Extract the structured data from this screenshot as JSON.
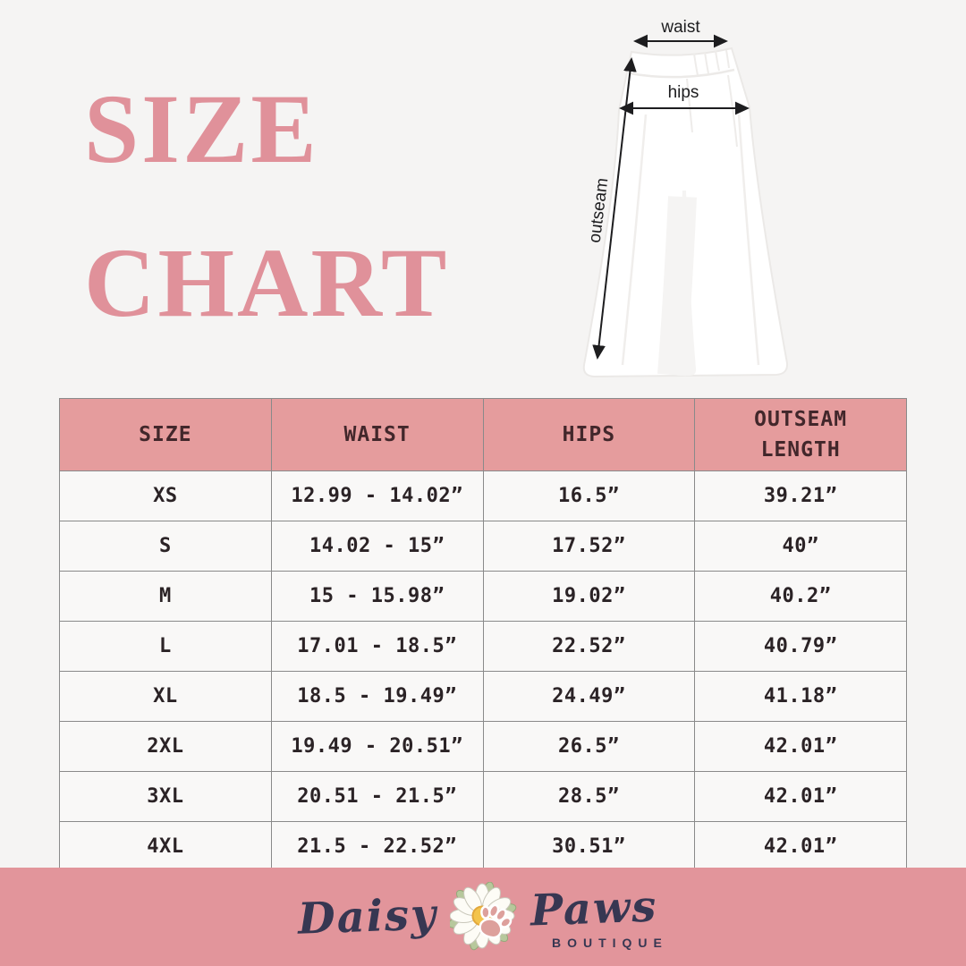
{
  "page": {
    "background_color": "#f5f4f3"
  },
  "title": {
    "line1": "SIZE",
    "line2": "CHART",
    "color": "#e0919a"
  },
  "diagram": {
    "waist_label": "waist",
    "hips_label": "hips",
    "outseam_label": "outseam"
  },
  "table": {
    "headers": [
      "SIZE",
      "WAIST",
      "HIPS",
      "OUTSEAM LENGTH"
    ],
    "rows": [
      [
        "XS",
        "12.99 - 14.02”",
        "16.5”",
        "39.21”"
      ],
      [
        "S",
        "14.02 - 15”",
        "17.52”",
        "40”"
      ],
      [
        "M",
        "15 - 15.98”",
        "19.02”",
        "40.2”"
      ],
      [
        "L",
        "17.01 - 18.5”",
        "22.52”",
        "40.79”"
      ],
      [
        "XL",
        "18.5 - 19.49”",
        "24.49”",
        "41.18”"
      ],
      [
        "2XL",
        "19.49 - 20.51”",
        "26.5”",
        "42.01”"
      ],
      [
        "3XL",
        "20.51 - 21.5”",
        "28.5”",
        "42.01”"
      ],
      [
        "4XL",
        "21.5 - 22.52”",
        "30.51”",
        "42.01”"
      ]
    ],
    "header_bg": "#e59c9d",
    "header_text_color": "#42272b",
    "row_bg": "#f9f8f7",
    "border_color": "#8a8a8a"
  },
  "footer": {
    "brand_word1": "Daisy",
    "brand_word2": "Paws",
    "brand_sub": "BOUTIQUE",
    "bar_color": "#e2959b",
    "text_color": "#373752"
  }
}
